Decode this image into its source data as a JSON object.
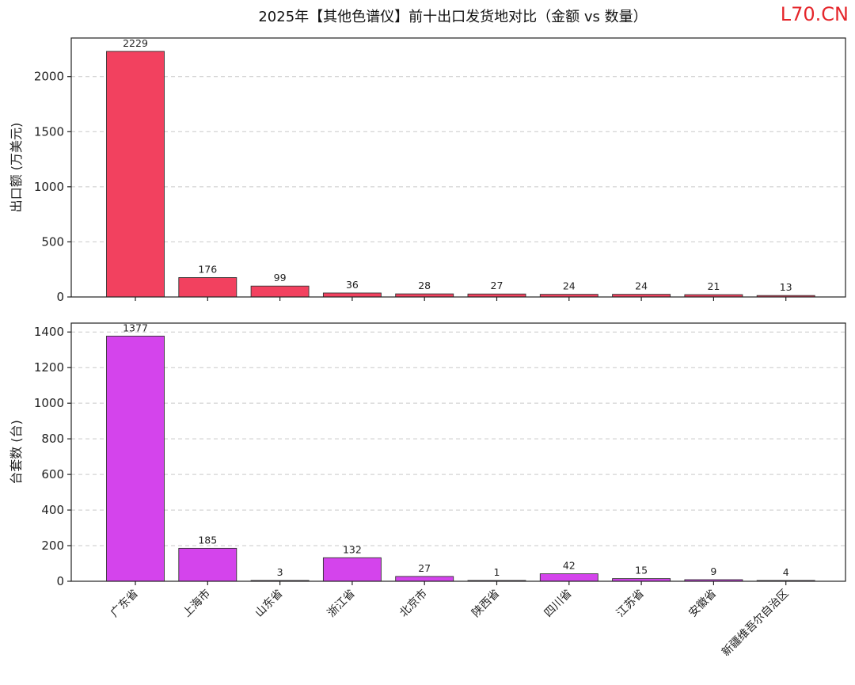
{
  "title": "2025年【其他色谱仪】前十出口发货地对比（金额 vs 数量）",
  "watermark": {
    "brand": "L70.CN",
    "brand_color": "#e5262b"
  },
  "chart_data": [
    {
      "type": "bar",
      "categories": [
        "广东省",
        "上海市",
        "山东省",
        "浙江省",
        "北京市",
        "陕西省",
        "四川省",
        "江苏省",
        "安徽省",
        "新疆维吾尔自治区"
      ],
      "values": [
        2229,
        176,
        99,
        36,
        28,
        27,
        24,
        24,
        21,
        13
      ],
      "ylabel": "出口额 (万美元)",
      "ylim": [
        0,
        2350
      ],
      "yticks": [
        0,
        500,
        1000,
        1500,
        2000
      ],
      "color": "#f2415f",
      "grid": "horizontal dashed",
      "data_labels": true,
      "show_category_labels": false
    },
    {
      "type": "bar",
      "categories": [
        "广东省",
        "上海市",
        "山东省",
        "浙江省",
        "北京市",
        "陕西省",
        "四川省",
        "江苏省",
        "安徽省",
        "新疆维吾尔自治区"
      ],
      "values": [
        1377,
        185,
        3,
        132,
        27,
        1,
        42,
        15,
        9,
        4
      ],
      "ylabel": "台套数 (台)",
      "ylim": [
        0,
        1450
      ],
      "yticks": [
        0,
        200,
        400,
        600,
        800,
        1000,
        1200,
        1400
      ],
      "color": "#d444ec",
      "grid": "horizontal dashed",
      "data_labels": true,
      "show_category_labels": true
    }
  ]
}
